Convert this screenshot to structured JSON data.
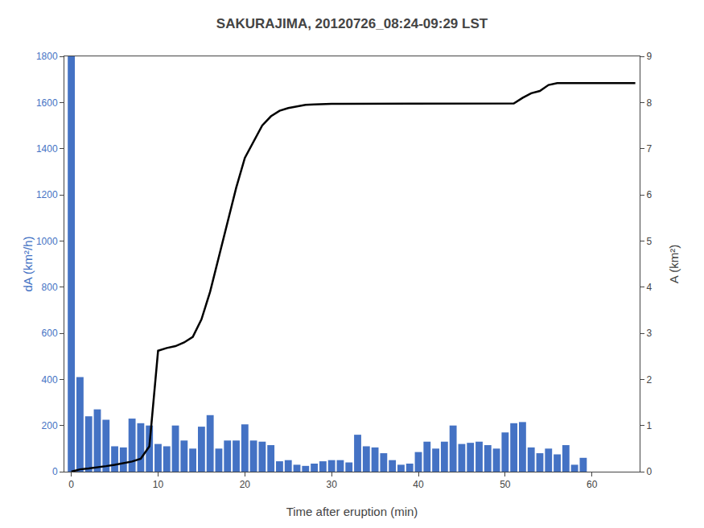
{
  "chart_data": {
    "type": "bar",
    "title": "SAKURAJIMA, 20120726_08:24-09:29 LST",
    "xlabel": "Time after eruption (min)",
    "ylabel": "dA (km²/h)",
    "y2label": "A (km²)",
    "x": [
      0,
      1,
      2,
      3,
      4,
      5,
      6,
      7,
      8,
      9,
      10,
      11,
      12,
      13,
      14,
      15,
      16,
      17,
      18,
      19,
      20,
      21,
      22,
      23,
      24,
      25,
      26,
      27,
      28,
      29,
      30,
      31,
      32,
      33,
      34,
      35,
      36,
      37,
      38,
      39,
      40,
      41,
      42,
      43,
      44,
      45,
      46,
      47,
      48,
      49,
      50,
      51,
      52,
      53,
      54,
      55,
      56,
      57,
      58,
      59,
      60,
      61,
      62,
      63,
      64,
      65
    ],
    "series": [
      {
        "type": "bar",
        "color": "#4472C4",
        "values": [
          1800,
          410,
          240,
          270,
          225,
          110,
          105,
          230,
          210,
          200,
          120,
          110,
          200,
          135,
          100,
          195,
          245,
          100,
          135,
          135,
          205,
          135,
          130,
          115,
          45,
          50,
          30,
          25,
          35,
          45,
          50,
          50,
          40,
          160,
          110,
          105,
          80,
          50,
          30,
          35,
          85,
          130,
          100,
          130,
          200,
          120,
          125,
          130,
          115,
          100,
          170,
          210,
          215,
          105,
          80,
          100,
          75,
          115,
          30,
          60,
          0,
          0,
          0,
          0,
          0,
          0
        ]
      },
      {
        "type": "line",
        "color": "#000000",
        "axis": "y2",
        "values": [
          0.0,
          0.05,
          0.07,
          0.09,
          0.12,
          0.15,
          0.18,
          0.22,
          0.28,
          0.55,
          2.62,
          2.68,
          2.72,
          2.8,
          2.92,
          3.3,
          3.9,
          4.65,
          5.45,
          6.15,
          6.8,
          7.15,
          7.5,
          7.7,
          7.82,
          7.88,
          7.92,
          7.95,
          7.96,
          7.97,
          7.97,
          7.97,
          7.97,
          7.97,
          7.97,
          7.97,
          7.97,
          7.97,
          7.97,
          7.97,
          7.98,
          7.98,
          7.98,
          7.98,
          7.98,
          7.98,
          7.98,
          7.98,
          7.98,
          7.98,
          7.98,
          7.98,
          8.1,
          8.2,
          8.25,
          8.38,
          8.42,
          8.42,
          8.42,
          8.42,
          8.42,
          8.42,
          8.42,
          8.42,
          8.42,
          8.42
        ]
      }
    ],
    "xlim": [
      -0.8,
      65.5
    ],
    "xticks": [
      0,
      10,
      20,
      30,
      40,
      50,
      60
    ],
    "ylim": [
      0,
      1800
    ],
    "yticks": [
      0,
      200,
      400,
      600,
      800,
      1000,
      1200,
      1400,
      1600,
      1800
    ],
    "y2lim": [
      0,
      9
    ],
    "y2ticks": [
      0,
      1,
      2,
      3,
      4,
      5,
      6,
      7,
      8,
      9
    ],
    "grid": false
  }
}
